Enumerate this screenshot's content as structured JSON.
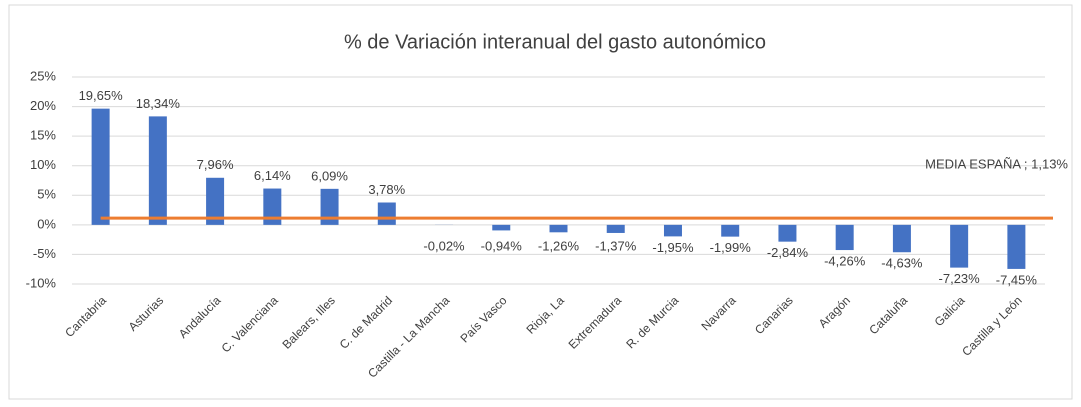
{
  "chart_data": {
    "type": "bar",
    "title": "% de Variación interanual del gasto autonómico",
    "categories": [
      "Cantabria",
      "Asturias",
      "Andalucía",
      "C. Valenciana",
      "Balears, Illes",
      "C. de Madrid",
      "Castilla - La Mancha",
      "País Vasco",
      "Rioja, La",
      "Extremadura",
      "R. de Murcia",
      "Navarra",
      "Canarias",
      "Aragón",
      "Cataluña",
      "Galicia",
      "Castilla y León"
    ],
    "values": [
      19.65,
      18.34,
      7.96,
      6.14,
      6.09,
      3.78,
      -0.02,
      -0.94,
      -1.26,
      -1.37,
      -1.95,
      -1.99,
      -2.84,
      -4.26,
      -4.63,
      -7.23,
      -7.45
    ],
    "value_labels": [
      "19,65%",
      "18,34%",
      "7,96%",
      "6,14%",
      "6,09%",
      "3,78%",
      "-0,02%",
      "-0,94%",
      "-1,26%",
      "-1,37%",
      "-1,95%",
      "-1,99%",
      "-2,84%",
      "-4,26%",
      "-4,63%",
      "-7,23%",
      "-7,45%"
    ],
    "color": "#4472c4",
    "reference_line": {
      "label": "MEDIA ESPAÑA ; 1,13%",
      "value": 1.13,
      "color": "#ed7d31"
    },
    "ylim": [
      -10,
      25
    ],
    "yticks": [
      {
        "value": -10,
        "label": "-10%"
      },
      {
        "value": -5,
        "label": "-5%"
      },
      {
        "value": 0,
        "label": "0%"
      },
      {
        "value": 5,
        "label": "5%"
      },
      {
        "value": 10,
        "label": "10%"
      },
      {
        "value": 15,
        "label": "15%"
      },
      {
        "value": 20,
        "label": "20%"
      },
      {
        "value": 25,
        "label": "25%"
      }
    ],
    "grid": true
  }
}
